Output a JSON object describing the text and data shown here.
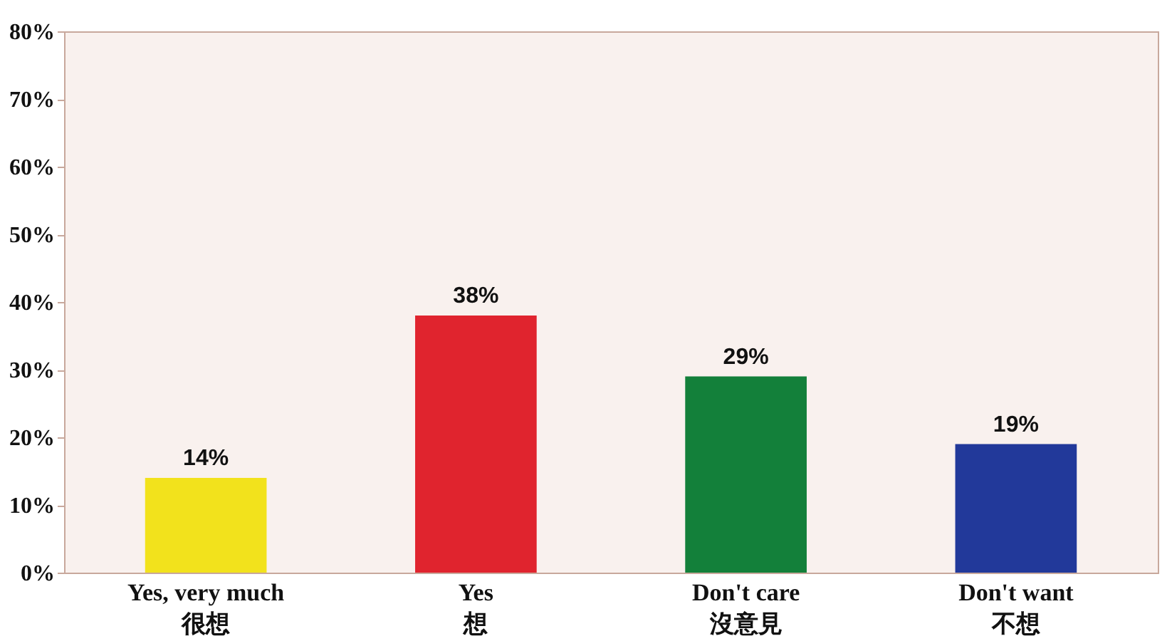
{
  "chart_data": {
    "type": "bar",
    "categories": [
      "Yes, very much\n很想",
      "Yes\n想",
      "Don't care\n沒意見",
      "Don't want\n不想"
    ],
    "values": [
      14,
      38,
      29,
      19
    ],
    "colors": [
      "#f2e21c",
      "#e0242e",
      "#13803a",
      "#22399a"
    ],
    "value_labels": [
      "14%",
      "38%",
      "29%",
      "19%"
    ],
    "ylim": [
      0,
      80
    ],
    "yticks": [
      {
        "value": 0,
        "label": "0%"
      },
      {
        "value": 10,
        "label": "10%"
      },
      {
        "value": 20,
        "label": "20%"
      },
      {
        "value": 30,
        "label": "30%"
      },
      {
        "value": 40,
        "label": "40%"
      },
      {
        "value": 50,
        "label": "50%"
      },
      {
        "value": 60,
        "label": "60%"
      },
      {
        "value": 70,
        "label": "70%"
      },
      {
        "value": 80,
        "label": "80%"
      }
    ],
    "grid": false
  }
}
